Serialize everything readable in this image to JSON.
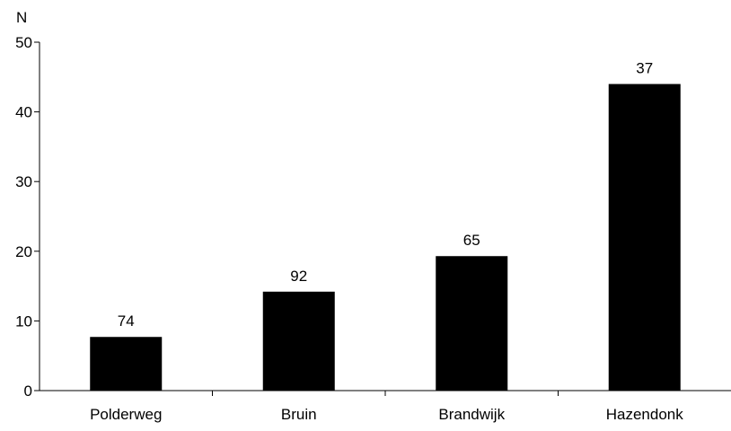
{
  "chart_data": {
    "type": "bar",
    "ylabel": "N",
    "categories": [
      "Polderweg",
      "Bruin",
      "Brandwijk",
      "Hazendonk"
    ],
    "values": [
      7.7,
      14.2,
      19.3,
      44.0
    ],
    "data_labels": [
      "74",
      "92",
      "65",
      "37"
    ],
    "ylim": [
      0,
      50
    ],
    "yticks": [
      0,
      10,
      20,
      30,
      40,
      50
    ],
    "grid": false,
    "legend": "none",
    "bar_color": "#000000"
  }
}
